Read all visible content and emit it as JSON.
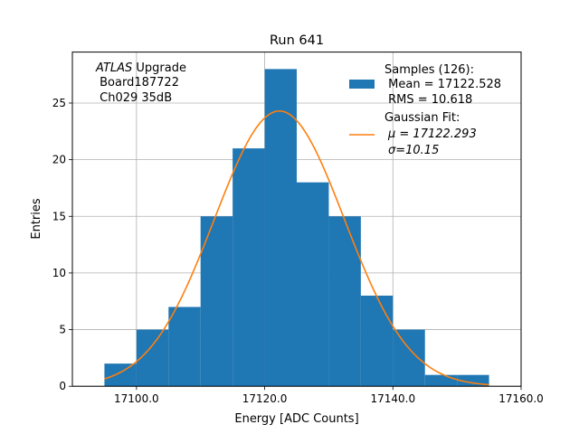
{
  "chart_data": {
    "type": "bar",
    "title": "Run 641",
    "xlabel": "Energy [ADC Counts]",
    "ylabel": "Entries",
    "xlim": [
      17090,
      17160
    ],
    "ylim": [
      0,
      29.5
    ],
    "x_ticks": [
      17100,
      17120,
      17140,
      17160
    ],
    "x_tick_labels": [
      "17100.0",
      "17120.0",
      "17140.0",
      "17160.0"
    ],
    "y_ticks": [
      0,
      5,
      10,
      15,
      20,
      25
    ],
    "y_tick_labels": [
      "0",
      "5",
      "10",
      "15",
      "20",
      "25"
    ],
    "grid": true,
    "histogram": {
      "bin_edges": [
        17095,
        17100,
        17105,
        17110,
        17115,
        17120,
        17125,
        17130,
        17135,
        17140,
        17145,
        17150,
        17155
      ],
      "counts": [
        2,
        5,
        7,
        15,
        21,
        28,
        18,
        15,
        8,
        5,
        1,
        1
      ],
      "color": "#1f77b4"
    },
    "fit": {
      "mu": 17122.293,
      "sigma": 10.15,
      "amplitude": 24.3,
      "x_range": [
        17095,
        17155
      ],
      "color": "#ff7f0e"
    },
    "annotation": {
      "italic": "ATLAS",
      "rest": " Upgrade",
      "line2": " Board187722",
      "line3": " Ch029 35dB"
    },
    "legend": {
      "placement": "top-right",
      "hist_lines": [
        "Samples (126):",
        " Mean = 17122.528",
        " RMS = 10.618"
      ],
      "fit_line1": "Gaussian Fit:",
      "fit_mu_label": "μ = 17122.293",
      "fit_sigma_label": "σ=10.15"
    }
  }
}
